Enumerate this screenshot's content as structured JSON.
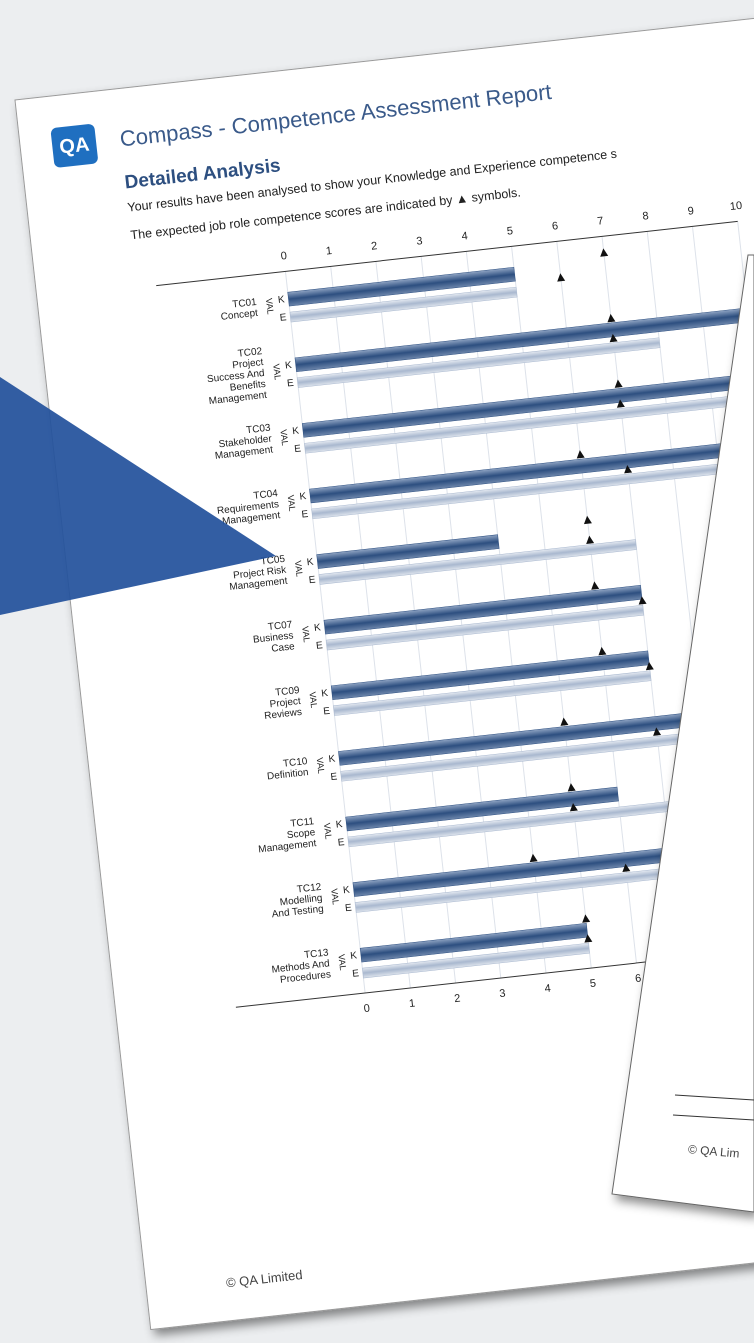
{
  "logo": "QA",
  "header": {
    "title": "Compass - Competence Assessment Report"
  },
  "chart_data": {
    "type": "bar",
    "orientation": "horizontal",
    "title": "Detailed Analysis",
    "subtitle": "Your results have been analysed to show your Knowledge and Experience competence s",
    "note": "The expected job role competence scores are indicated by ▲ symbols.",
    "row_label": "VAL",
    "categories": [
      [
        "TC01",
        "Concept"
      ],
      [
        "TC02",
        "Project",
        "Success And",
        "Benefits",
        "Management"
      ],
      [
        "TC03",
        "Stakeholder",
        "Management"
      ],
      [
        "TC04",
        "Requirements",
        "Management"
      ],
      [
        "TC05",
        "Project Risk",
        "Management"
      ],
      [
        "TC07",
        "Business",
        "Case"
      ],
      [
        "TC09",
        "Project",
        "Reviews"
      ],
      [
        "TC10",
        "Definition"
      ],
      [
        "TC11",
        "Scope",
        "Management"
      ],
      [
        "TC12",
        "Modelling",
        "And Testing"
      ],
      [
        "TC13",
        "Methods And",
        "Procedures"
      ]
    ],
    "series": [
      {
        "name": "K",
        "color": "#2d4f80",
        "values": [
          5,
          10,
          10,
          10,
          4,
          7,
          7,
          10,
          6,
          10,
          5
        ]
      },
      {
        "name": "E",
        "color": "#a9b8cf",
        "values": [
          5,
          8,
          10,
          10,
          7,
          7,
          7,
          10,
          10,
          10,
          5
        ]
      }
    ],
    "expected_k": [
      7,
      7,
      7,
      6,
      6,
      6,
      6,
      5,
      5,
      4,
      5
    ],
    "expected_e": [
      6,
      7,
      7,
      7,
      6,
      7,
      7,
      7,
      5,
      6,
      5
    ],
    "xlim": [
      0,
      10
    ],
    "xticks": [
      0,
      1,
      2,
      3,
      4,
      5,
      6,
      7,
      8,
      9,
      10
    ],
    "grid": true
  },
  "footer": "© QA Limited",
  "overlay_footer": "© QA Lim"
}
